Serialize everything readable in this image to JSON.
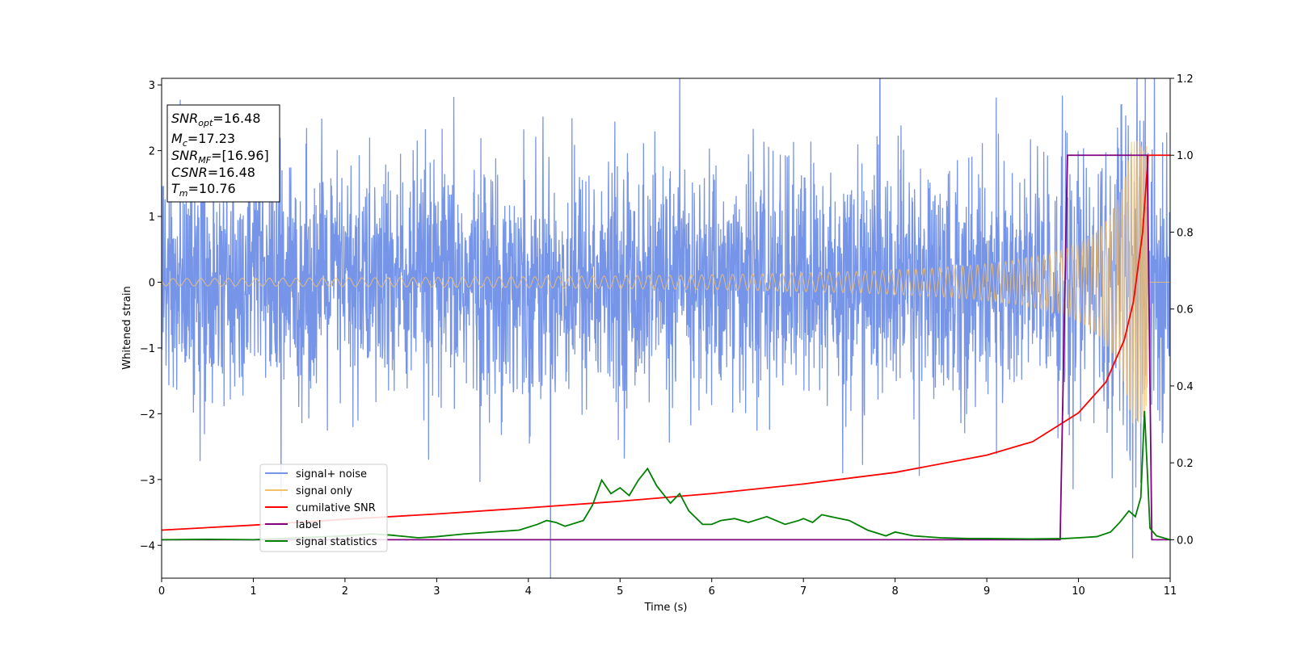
{
  "chart_data": {
    "type": "line",
    "xlabel": "Time (s)",
    "ylabel": "Whitened strain",
    "xlim": [
      0,
      11
    ],
    "ylim": [
      -4.5,
      3.1
    ],
    "ylim_right": [
      -0.1,
      1.2
    ],
    "grid": false,
    "legend_placement": "lower-left",
    "x_ticks": [
      0,
      1,
      2,
      3,
      4,
      5,
      6,
      7,
      8,
      9,
      10,
      11
    ],
    "y_ticks": [
      -4,
      -3,
      -2,
      -1,
      0,
      1,
      2,
      3
    ],
    "y_ticks_right": [
      0.0,
      0.2,
      0.4,
      0.6,
      0.8,
      1.0,
      1.2
    ],
    "x_tick_labels": [
      "0",
      "1",
      "2",
      "3",
      "4",
      "5",
      "6",
      "7",
      "8",
      "9",
      "10",
      "11"
    ],
    "y_tick_labels": [
      "−4",
      "−3",
      "−2",
      "−1",
      "0",
      "1",
      "2",
      "3"
    ],
    "y_tick_labels_right": [
      "0.0",
      "0.2",
      "0.4",
      "0.6",
      "0.8",
      "1.0",
      "1.2"
    ],
    "info_box": {
      "snr_opt": {
        "sym": "SNR",
        "sub": "opt",
        "value": "=16.48"
      },
      "mc": {
        "sym": "M",
        "sub": "c",
        "value": "=17.23"
      },
      "snr_mf": {
        "sym": "SNR",
        "sub": "MF",
        "value": "=[16.96]"
      },
      "csnr": {
        "sym": "CSNR",
        "sub": "",
        "value": "=16.48"
      },
      "tm": {
        "sym": "T",
        "sub": "m",
        "value": "=10.76"
      }
    },
    "series": [
      {
        "name": "signal+ noise",
        "color": "#7795e8",
        "axis": "left",
        "description_values": {
          "noise_sigma": 0.9,
          "duration": 11
        }
      },
      {
        "name": "signal only",
        "color": "#f5c06a",
        "axis": "left",
        "merger_time": 10.76,
        "peak_amplitude": 2.15
      },
      {
        "name": "cumilative SNR",
        "color": "#ff0000",
        "axis": "right",
        "x": [
          0,
          1,
          2,
          3,
          4,
          5,
          6,
          7,
          8,
          9,
          9.5,
          10,
          10.3,
          10.5,
          10.6,
          10.7,
          10.76,
          11
        ],
        "y": [
          0.025,
          0.038,
          0.053,
          0.067,
          0.083,
          0.1,
          0.12,
          0.145,
          0.175,
          0.22,
          0.255,
          0.33,
          0.41,
          0.52,
          0.62,
          0.8,
          1.0,
          1.0
        ]
      },
      {
        "name": "label",
        "color": "#800080",
        "axis": "right",
        "x": [
          0,
          9.8,
          9.88,
          10.75,
          10.8,
          11
        ],
        "y": [
          0.0,
          0.0,
          1.0,
          1.0,
          0.0,
          0.0
        ]
      },
      {
        "name": "signal statistics",
        "color": "#008000",
        "axis": "right",
        "x": [
          0,
          0.5,
          1,
          1.5,
          2,
          2.3,
          2.5,
          2.8,
          3,
          3.3,
          3.6,
          3.9,
          4.1,
          4.2,
          4.3,
          4.4,
          4.6,
          4.7,
          4.8,
          4.9,
          5.0,
          5.1,
          5.2,
          5.3,
          5.4,
          5.55,
          5.65,
          5.75,
          5.9,
          6.0,
          6.1,
          6.25,
          6.4,
          6.6,
          6.8,
          6.95,
          7.0,
          7.1,
          7.2,
          7.3,
          7.5,
          7.7,
          7.9,
          8.0,
          8.2,
          8.5,
          8.8,
          9.0,
          9.5,
          9.85,
          10.0,
          10.2,
          10.35,
          10.45,
          10.55,
          10.62,
          10.68,
          10.72,
          10.78,
          10.85,
          11
        ],
        "y": [
          0.0,
          0.001,
          0.0,
          0.005,
          0.01,
          0.015,
          0.012,
          0.005,
          0.008,
          0.015,
          0.02,
          0.025,
          0.04,
          0.05,
          0.045,
          0.035,
          0.05,
          0.09,
          0.155,
          0.12,
          0.135,
          0.115,
          0.155,
          0.185,
          0.14,
          0.095,
          0.12,
          0.075,
          0.04,
          0.04,
          0.05,
          0.055,
          0.045,
          0.06,
          0.04,
          0.05,
          0.055,
          0.045,
          0.065,
          0.06,
          0.05,
          0.025,
          0.01,
          0.02,
          0.01,
          0.005,
          0.003,
          0.003,
          0.002,
          0.003,
          0.005,
          0.008,
          0.02,
          0.045,
          0.075,
          0.06,
          0.11,
          0.335,
          0.03,
          0.01,
          0.0
        ]
      }
    ]
  }
}
